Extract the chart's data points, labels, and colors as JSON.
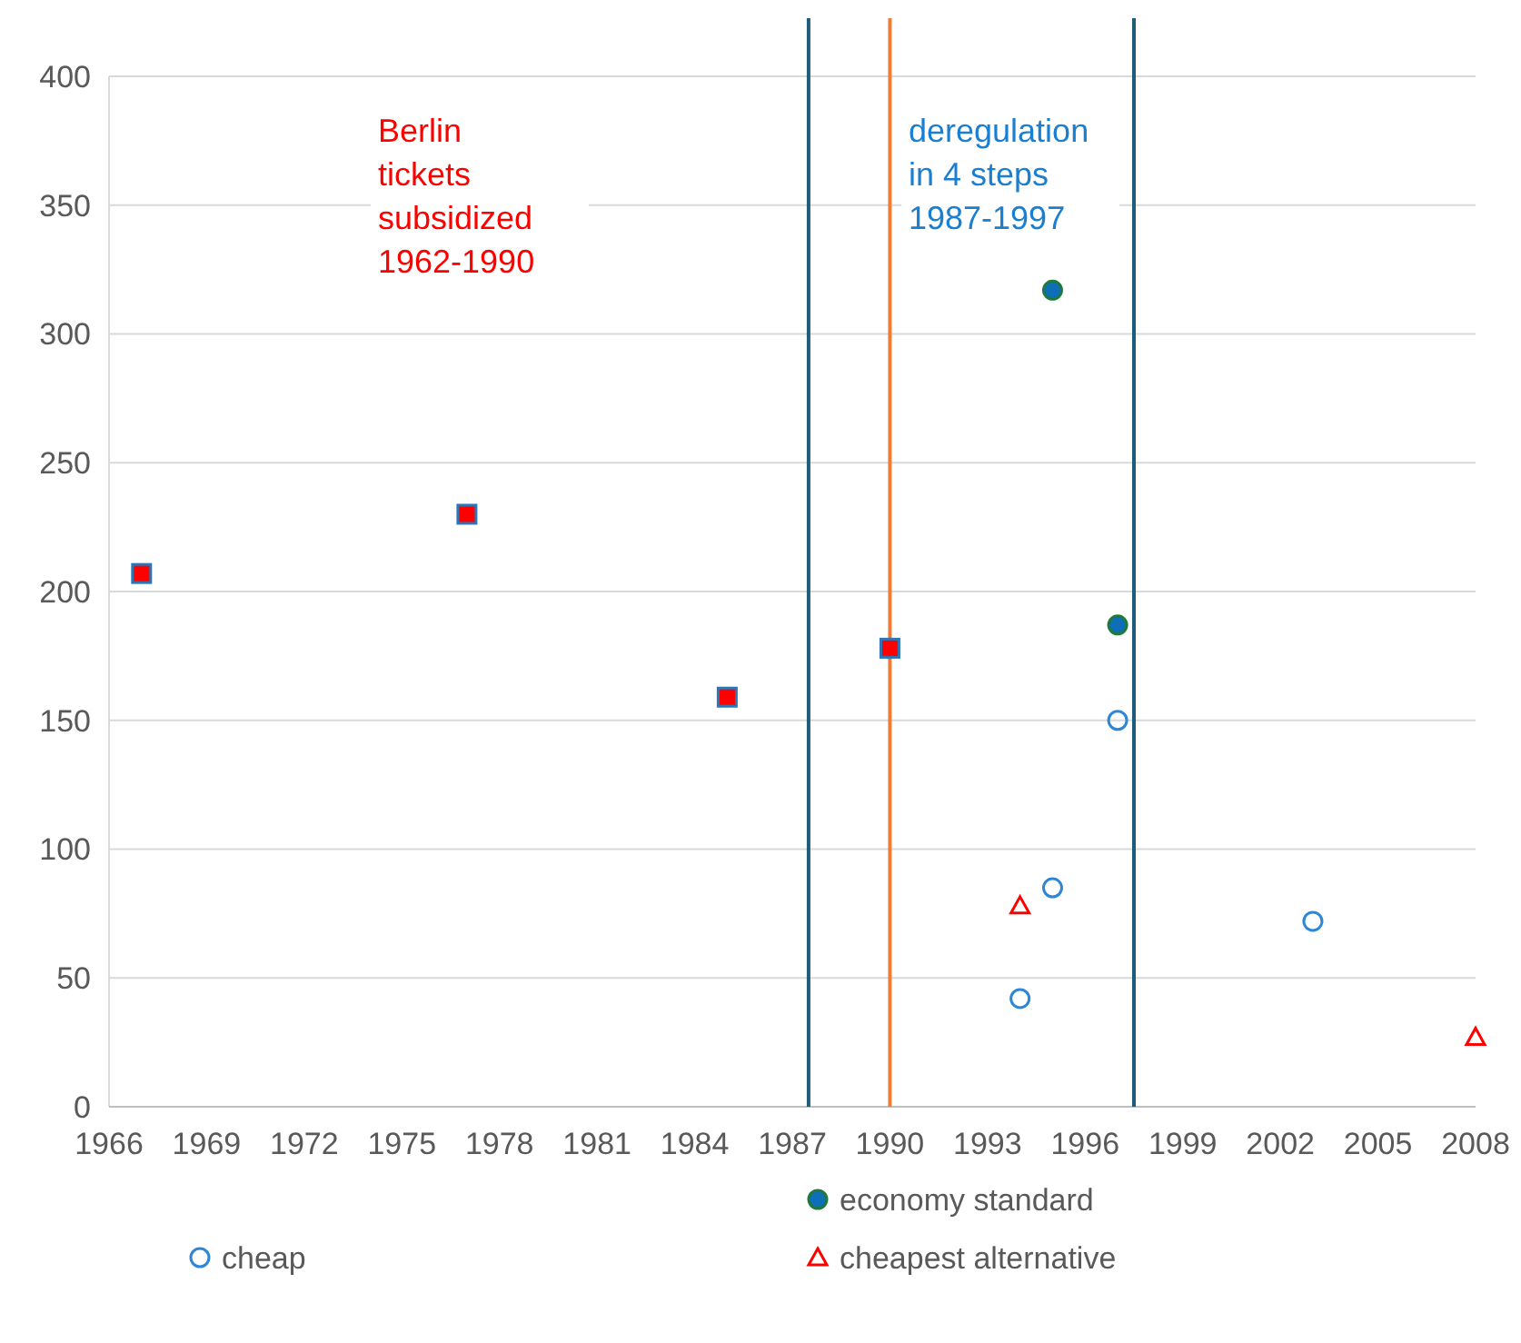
{
  "chart_data": {
    "type": "scatter",
    "xlim": [
      1966,
      2008
    ],
    "xticks": [
      1966,
      1969,
      1972,
      1975,
      1978,
      1981,
      1984,
      1987,
      1990,
      1993,
      1996,
      1999,
      2002,
      2005,
      2008
    ],
    "ylim": [
      0,
      400
    ],
    "yticks": [
      0,
      50,
      100,
      150,
      200,
      250,
      300,
      350,
      400
    ],
    "grid": "y",
    "legend": "bottom",
    "series": [
      {
        "color": "#ff0000",
        "marker": "square",
        "x": [
          1967,
          1977,
          1985,
          1990
        ],
        "values": [
          207,
          230,
          159,
          178
        ]
      },
      {
        "name": "economy standard",
        "color": "#0e6eb8",
        "marker": "circle",
        "x": [
          1995,
          1997
        ],
        "values": [
          317,
          187
        ]
      },
      {
        "name": "cheap",
        "color": "#2e86d4",
        "marker": "circle",
        "x": [
          1997,
          1995,
          1994,
          2003
        ],
        "values": [
          150,
          85,
          42,
          72
        ]
      },
      {
        "name": "cheapest alternative",
        "color": "#ff0000",
        "marker": "triangle",
        "x": [
          1994,
          2008
        ],
        "values": [
          78,
          27
        ]
      }
    ],
    "ref_lines": [
      {
        "axis": "x",
        "value": 1987.5,
        "color": "#1f5c7a"
      },
      {
        "axis": "x",
        "value": 1990,
        "color": "#f07c3a"
      },
      {
        "axis": "x",
        "value": 1997.5,
        "color": "#1f5c7a"
      }
    ],
    "annotations": [
      "Berlin tickets subsidized 1962-1990",
      "deregulation in 4 steps 1987-1997"
    ]
  }
}
